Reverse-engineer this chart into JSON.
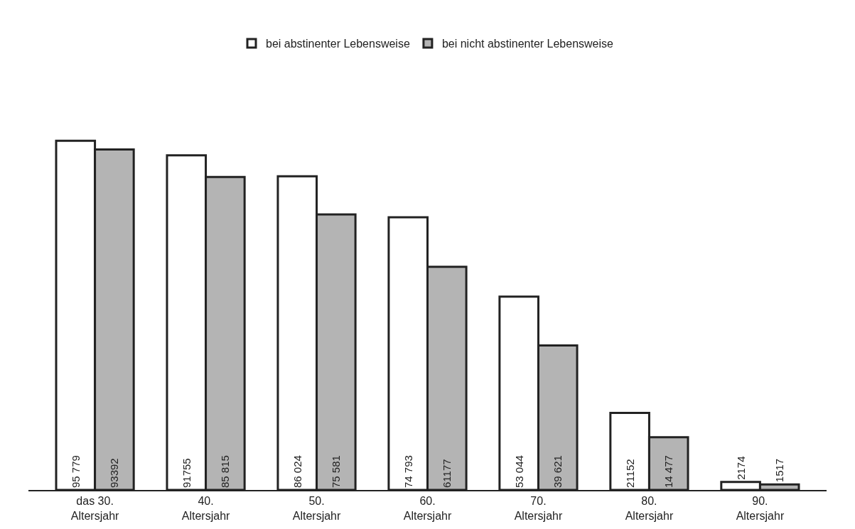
{
  "chart_data": {
    "type": "bar",
    "categories": [
      "das 30.\nAltersjahr",
      "40.\nAltersjahr",
      "50.\nAltersjahr",
      "60.\nAltersjahr",
      "70.\nAltersjahr",
      "80.\nAltersjahr",
      "90.\nAltersjahr"
    ],
    "series": [
      {
        "name": "bei abstinenter Lebensweise",
        "color": "#ffffff",
        "values": [
          95779,
          91755,
          86024,
          74793,
          53044,
          21152,
          2174
        ],
        "value_labels": [
          "95 779",
          "91755",
          "86 024",
          "74 793",
          "53 044",
          "21152",
          "2174"
        ]
      },
      {
        "name": "bei nicht abstinenter Lebensweise",
        "color": "#b4b4b4",
        "values": [
          93392,
          85815,
          75581,
          61177,
          39621,
          14477,
          1517
        ],
        "value_labels": [
          "93392",
          "85 815",
          "75 581",
          "61177",
          "39 621",
          "14 477",
          "1517"
        ]
      }
    ],
    "legend": "top"
  }
}
